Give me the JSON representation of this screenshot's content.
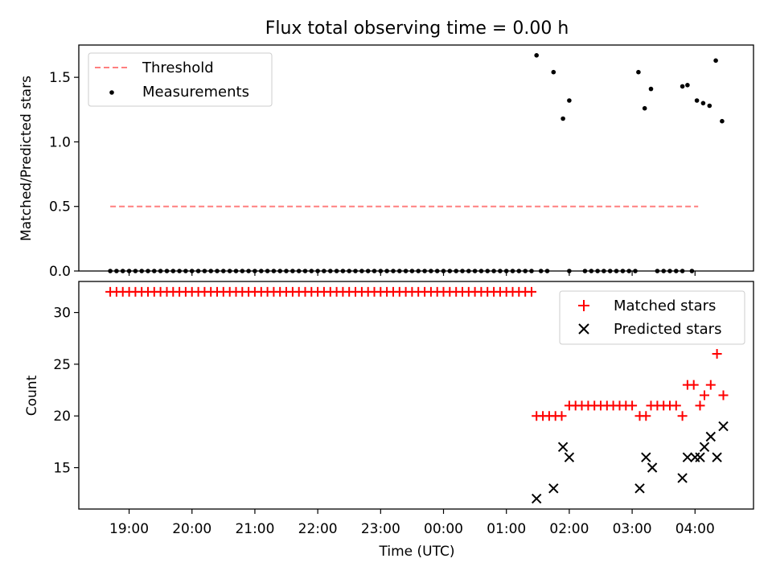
{
  "figure_title": "Flux total observing time = 0.00 h",
  "time_ticks": [
    {
      "label": "19:00",
      "t": 0.3
    },
    {
      "label": "20:00",
      "t": 1.3
    },
    {
      "label": "21:00",
      "t": 2.3
    },
    {
      "label": "22:00",
      "t": 3.3
    },
    {
      "label": "23:00",
      "t": 4.3
    },
    {
      "label": "00:00",
      "t": 5.3
    },
    {
      "label": "01:00",
      "t": 6.3
    },
    {
      "label": "02:00",
      "t": 7.3
    },
    {
      "label": "03:00",
      "t": 8.3
    },
    {
      "label": "04:00",
      "t": 9.3
    }
  ],
  "chart_data": [
    {
      "type": "scatter",
      "title": "Flux total observing time = 0.00 h",
      "xlabel": "",
      "ylabel": "Matched/Predicted stars",
      "xlim": [
        -0.5,
        10.23
      ],
      "ylim": [
        0.0,
        1.75
      ],
      "yticks": [
        0.0,
        0.5,
        1.0,
        1.5
      ],
      "legend_position": "upper-left",
      "threshold": {
        "name": "Threshold",
        "y": 0.5,
        "x": [
          0,
          9.35
        ],
        "color": "#ff7f7f",
        "style": "dashed"
      },
      "series": [
        {
          "name": "Measurements",
          "color": "#000000",
          "points": [
            {
              "x": 0.0,
              "y": 0
            },
            {
              "x": 0.1,
              "y": 0
            },
            {
              "x": 0.2,
              "y": 0
            },
            {
              "x": 0.3,
              "y": 0
            },
            {
              "x": 0.4,
              "y": 0
            },
            {
              "x": 0.5,
              "y": 0
            },
            {
              "x": 0.6,
              "y": 0
            },
            {
              "x": 0.7,
              "y": 0
            },
            {
              "x": 0.8,
              "y": 0
            },
            {
              "x": 0.9,
              "y": 0
            },
            {
              "x": 1.0,
              "y": 0
            },
            {
              "x": 1.1,
              "y": 0
            },
            {
              "x": 1.2,
              "y": 0
            },
            {
              "x": 1.3,
              "y": 0
            },
            {
              "x": 1.4,
              "y": 0
            },
            {
              "x": 1.5,
              "y": 0
            },
            {
              "x": 1.6,
              "y": 0
            },
            {
              "x": 1.7,
              "y": 0
            },
            {
              "x": 1.8,
              "y": 0
            },
            {
              "x": 1.9,
              "y": 0
            },
            {
              "x": 2.0,
              "y": 0
            },
            {
              "x": 2.1,
              "y": 0
            },
            {
              "x": 2.2,
              "y": 0
            },
            {
              "x": 2.3,
              "y": 0
            },
            {
              "x": 2.4,
              "y": 0
            },
            {
              "x": 2.5,
              "y": 0
            },
            {
              "x": 2.6,
              "y": 0
            },
            {
              "x": 2.7,
              "y": 0
            },
            {
              "x": 2.8,
              "y": 0
            },
            {
              "x": 2.9,
              "y": 0
            },
            {
              "x": 3.0,
              "y": 0
            },
            {
              "x": 3.1,
              "y": 0
            },
            {
              "x": 3.2,
              "y": 0
            },
            {
              "x": 3.3,
              "y": 0
            },
            {
              "x": 3.4,
              "y": 0
            },
            {
              "x": 3.5,
              "y": 0
            },
            {
              "x": 3.6,
              "y": 0
            },
            {
              "x": 3.7,
              "y": 0
            },
            {
              "x": 3.8,
              "y": 0
            },
            {
              "x": 3.9,
              "y": 0
            },
            {
              "x": 4.0,
              "y": 0
            },
            {
              "x": 4.1,
              "y": 0
            },
            {
              "x": 4.2,
              "y": 0
            },
            {
              "x": 4.3,
              "y": 0
            },
            {
              "x": 4.4,
              "y": 0
            },
            {
              "x": 4.5,
              "y": 0
            },
            {
              "x": 4.6,
              "y": 0
            },
            {
              "x": 4.7,
              "y": 0
            },
            {
              "x": 4.8,
              "y": 0
            },
            {
              "x": 4.9,
              "y": 0
            },
            {
              "x": 5.0,
              "y": 0
            },
            {
              "x": 5.1,
              "y": 0
            },
            {
              "x": 5.2,
              "y": 0
            },
            {
              "x": 5.3,
              "y": 0
            },
            {
              "x": 5.4,
              "y": 0
            },
            {
              "x": 5.5,
              "y": 0
            },
            {
              "x": 5.6,
              "y": 0
            },
            {
              "x": 5.7,
              "y": 0
            },
            {
              "x": 5.8,
              "y": 0
            },
            {
              "x": 5.9,
              "y": 0
            },
            {
              "x": 6.0,
              "y": 0
            },
            {
              "x": 6.1,
              "y": 0
            },
            {
              "x": 6.2,
              "y": 0
            },
            {
              "x": 6.3,
              "y": 0
            },
            {
              "x": 6.4,
              "y": 0
            },
            {
              "x": 6.5,
              "y": 0
            },
            {
              "x": 6.6,
              "y": 0
            },
            {
              "x": 6.7,
              "y": 0
            },
            {
              "x": 6.85,
              "y": 0
            },
            {
              "x": 6.95,
              "y": 0
            },
            {
              "x": 7.3,
              "y": 0
            },
            {
              "x": 7.55,
              "y": 0
            },
            {
              "x": 7.65,
              "y": 0
            },
            {
              "x": 7.75,
              "y": 0
            },
            {
              "x": 7.85,
              "y": 0
            },
            {
              "x": 7.95,
              "y": 0
            },
            {
              "x": 8.05,
              "y": 0
            },
            {
              "x": 8.15,
              "y": 0
            },
            {
              "x": 8.25,
              "y": 0
            },
            {
              "x": 8.35,
              "y": 0
            },
            {
              "x": 8.7,
              "y": 0
            },
            {
              "x": 8.8,
              "y": 0
            },
            {
              "x": 8.9,
              "y": 0
            },
            {
              "x": 9.0,
              "y": 0
            },
            {
              "x": 9.1,
              "y": 0
            },
            {
              "x": 9.25,
              "y": 0
            },
            {
              "x": 6.78,
              "y": 1.67
            },
            {
              "x": 7.05,
              "y": 1.54
            },
            {
              "x": 7.2,
              "y": 1.18
            },
            {
              "x": 7.3,
              "y": 1.32
            },
            {
              "x": 8.4,
              "y": 1.54
            },
            {
              "x": 8.5,
              "y": 1.26
            },
            {
              "x": 8.6,
              "y": 1.41
            },
            {
              "x": 9.1,
              "y": 1.43
            },
            {
              "x": 9.18,
              "y": 1.44
            },
            {
              "x": 9.33,
              "y": 1.32
            },
            {
              "x": 9.43,
              "y": 1.3
            },
            {
              "x": 9.53,
              "y": 1.28
            },
            {
              "x": 9.63,
              "y": 1.63
            },
            {
              "x": 9.73,
              "y": 1.16
            }
          ]
        }
      ]
    },
    {
      "type": "scatter",
      "title": "",
      "xlabel": "Time (UTC)",
      "ylabel": "Count",
      "xlim": [
        -0.5,
        10.23
      ],
      "ylim": [
        11.0,
        33.0
      ],
      "yticks": [
        15,
        20,
        25,
        30
      ],
      "legend_position": "upper-right",
      "series": [
        {
          "name": "Matched stars",
          "marker": "plus",
          "color": "#ff0000",
          "points": [
            {
              "x": 0.0,
              "y": 32
            },
            {
              "x": 0.1,
              "y": 32
            },
            {
              "x": 0.2,
              "y": 32
            },
            {
              "x": 0.3,
              "y": 32
            },
            {
              "x": 0.4,
              "y": 32
            },
            {
              "x": 0.5,
              "y": 32
            },
            {
              "x": 0.6,
              "y": 32
            },
            {
              "x": 0.7,
              "y": 32
            },
            {
              "x": 0.8,
              "y": 32
            },
            {
              "x": 0.9,
              "y": 32
            },
            {
              "x": 1.0,
              "y": 32
            },
            {
              "x": 1.1,
              "y": 32
            },
            {
              "x": 1.2,
              "y": 32
            },
            {
              "x": 1.3,
              "y": 32
            },
            {
              "x": 1.4,
              "y": 32
            },
            {
              "x": 1.5,
              "y": 32
            },
            {
              "x": 1.6,
              "y": 32
            },
            {
              "x": 1.7,
              "y": 32
            },
            {
              "x": 1.8,
              "y": 32
            },
            {
              "x": 1.9,
              "y": 32
            },
            {
              "x": 2.0,
              "y": 32
            },
            {
              "x": 2.1,
              "y": 32
            },
            {
              "x": 2.2,
              "y": 32
            },
            {
              "x": 2.3,
              "y": 32
            },
            {
              "x": 2.4,
              "y": 32
            },
            {
              "x": 2.5,
              "y": 32
            },
            {
              "x": 2.6,
              "y": 32
            },
            {
              "x": 2.7,
              "y": 32
            },
            {
              "x": 2.8,
              "y": 32
            },
            {
              "x": 2.9,
              "y": 32
            },
            {
              "x": 3.0,
              "y": 32
            },
            {
              "x": 3.1,
              "y": 32
            },
            {
              "x": 3.2,
              "y": 32
            },
            {
              "x": 3.3,
              "y": 32
            },
            {
              "x": 3.4,
              "y": 32
            },
            {
              "x": 3.5,
              "y": 32
            },
            {
              "x": 3.6,
              "y": 32
            },
            {
              "x": 3.7,
              "y": 32
            },
            {
              "x": 3.8,
              "y": 32
            },
            {
              "x": 3.9,
              "y": 32
            },
            {
              "x": 4.0,
              "y": 32
            },
            {
              "x": 4.1,
              "y": 32
            },
            {
              "x": 4.2,
              "y": 32
            },
            {
              "x": 4.3,
              "y": 32
            },
            {
              "x": 4.4,
              "y": 32
            },
            {
              "x": 4.5,
              "y": 32
            },
            {
              "x": 4.6,
              "y": 32
            },
            {
              "x": 4.7,
              "y": 32
            },
            {
              "x": 4.8,
              "y": 32
            },
            {
              "x": 4.9,
              "y": 32
            },
            {
              "x": 5.0,
              "y": 32
            },
            {
              "x": 5.1,
              "y": 32
            },
            {
              "x": 5.2,
              "y": 32
            },
            {
              "x": 5.3,
              "y": 32
            },
            {
              "x": 5.4,
              "y": 32
            },
            {
              "x": 5.5,
              "y": 32
            },
            {
              "x": 5.6,
              "y": 32
            },
            {
              "x": 5.7,
              "y": 32
            },
            {
              "x": 5.8,
              "y": 32
            },
            {
              "x": 5.9,
              "y": 32
            },
            {
              "x": 6.0,
              "y": 32
            },
            {
              "x": 6.1,
              "y": 32
            },
            {
              "x": 6.2,
              "y": 32
            },
            {
              "x": 6.3,
              "y": 32
            },
            {
              "x": 6.4,
              "y": 32
            },
            {
              "x": 6.5,
              "y": 32
            },
            {
              "x": 6.6,
              "y": 32
            },
            {
              "x": 6.7,
              "y": 32
            },
            {
              "x": 6.78,
              "y": 20
            },
            {
              "x": 6.88,
              "y": 20
            },
            {
              "x": 6.98,
              "y": 20
            },
            {
              "x": 7.08,
              "y": 20
            },
            {
              "x": 7.18,
              "y": 20
            },
            {
              "x": 7.3,
              "y": 21
            },
            {
              "x": 7.4,
              "y": 21
            },
            {
              "x": 7.5,
              "y": 21
            },
            {
              "x": 7.6,
              "y": 21
            },
            {
              "x": 7.7,
              "y": 21
            },
            {
              "x": 7.8,
              "y": 21
            },
            {
              "x": 7.9,
              "y": 21
            },
            {
              "x": 8.0,
              "y": 21
            },
            {
              "x": 8.1,
              "y": 21
            },
            {
              "x": 8.2,
              "y": 21
            },
            {
              "x": 8.3,
              "y": 21
            },
            {
              "x": 8.42,
              "y": 20
            },
            {
              "x": 8.52,
              "y": 20
            },
            {
              "x": 8.6,
              "y": 21
            },
            {
              "x": 8.7,
              "y": 21
            },
            {
              "x": 8.8,
              "y": 21
            },
            {
              "x": 8.9,
              "y": 21
            },
            {
              "x": 9.0,
              "y": 21
            },
            {
              "x": 9.1,
              "y": 20
            },
            {
              "x": 9.18,
              "y": 23
            },
            {
              "x": 9.28,
              "y": 23
            },
            {
              "x": 9.38,
              "y": 21
            },
            {
              "x": 9.45,
              "y": 22
            },
            {
              "x": 9.55,
              "y": 23
            },
            {
              "x": 9.65,
              "y": 26
            },
            {
              "x": 9.75,
              "y": 22
            }
          ]
        },
        {
          "name": "Predicted stars",
          "marker": "x",
          "color": "#000000",
          "points": [
            {
              "x": 6.78,
              "y": 12
            },
            {
              "x": 7.05,
              "y": 13
            },
            {
              "x": 7.2,
              "y": 17
            },
            {
              "x": 7.3,
              "y": 16
            },
            {
              "x": 8.42,
              "y": 13
            },
            {
              "x": 8.52,
              "y": 16
            },
            {
              "x": 8.62,
              "y": 15
            },
            {
              "x": 9.1,
              "y": 14
            },
            {
              "x": 9.18,
              "y": 16
            },
            {
              "x": 9.3,
              "y": 16
            },
            {
              "x": 9.38,
              "y": 16
            },
            {
              "x": 9.45,
              "y": 17
            },
            {
              "x": 9.55,
              "y": 18
            },
            {
              "x": 9.65,
              "y": 16
            },
            {
              "x": 9.75,
              "y": 19
            }
          ]
        }
      ]
    }
  ]
}
